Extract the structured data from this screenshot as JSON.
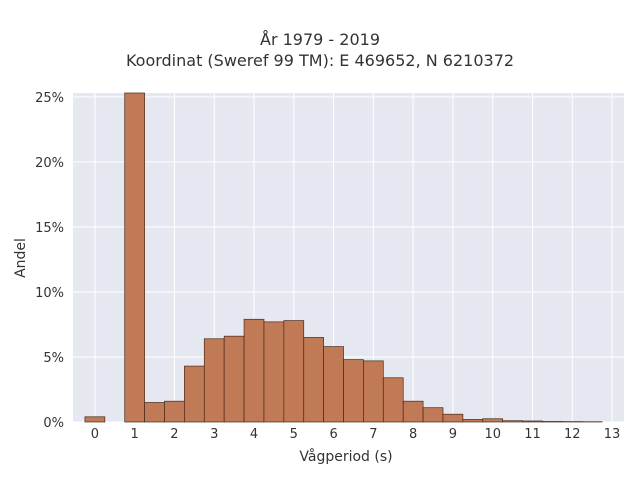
{
  "chart_data": {
    "type": "bar",
    "title_line1": "År 1979 - 2019",
    "title_line2": "Koordinat (Sweref 99 TM): E 469652, N 6210372",
    "xlabel": "Vågperiod (s)",
    "ylabel": "Andel",
    "bin_width": 0.5,
    "bins": [
      {
        "x": 0.0,
        "value": 0.4
      },
      {
        "x": 1.0,
        "value": 25.3
      },
      {
        "x": 1.5,
        "value": 1.5
      },
      {
        "x": 2.0,
        "value": 1.6
      },
      {
        "x": 2.5,
        "value": 4.3
      },
      {
        "x": 3.0,
        "value": 6.4
      },
      {
        "x": 3.5,
        "value": 6.6
      },
      {
        "x": 4.0,
        "value": 7.9
      },
      {
        "x": 4.5,
        "value": 7.7
      },
      {
        "x": 5.0,
        "value": 7.8
      },
      {
        "x": 5.5,
        "value": 6.5
      },
      {
        "x": 6.0,
        "value": 5.8
      },
      {
        "x": 6.5,
        "value": 4.8
      },
      {
        "x": 7.0,
        "value": 4.7
      },
      {
        "x": 7.5,
        "value": 3.4
      },
      {
        "x": 8.0,
        "value": 1.6
      },
      {
        "x": 8.5,
        "value": 1.1
      },
      {
        "x": 9.0,
        "value": 0.6
      },
      {
        "x": 9.5,
        "value": 0.2
      },
      {
        "x": 10.0,
        "value": 0.25
      },
      {
        "x": 10.5,
        "value": 0.1
      },
      {
        "x": 11.0,
        "value": 0.08
      },
      {
        "x": 11.5,
        "value": 0.04
      },
      {
        "x": 12.0,
        "value": 0.03
      },
      {
        "x": 12.5,
        "value": 0.02
      }
    ],
    "xlim": [
      -0.55,
      13.3
    ],
    "ylim": [
      0,
      25.3
    ],
    "x_ticks": [
      "0",
      "1",
      "2",
      "3",
      "4",
      "5",
      "6",
      "7",
      "8",
      "9",
      "10",
      "11",
      "12",
      "13"
    ],
    "y_ticks": [
      "0%",
      "5%",
      "10%",
      "15%",
      "20%",
      "25%"
    ],
    "grid": true,
    "colors": {
      "bar_fill": "#c07a55",
      "bar_stroke": "#4a2a1a",
      "plot_bg": "#e5e8f1",
      "grid": "#ffffff"
    }
  }
}
